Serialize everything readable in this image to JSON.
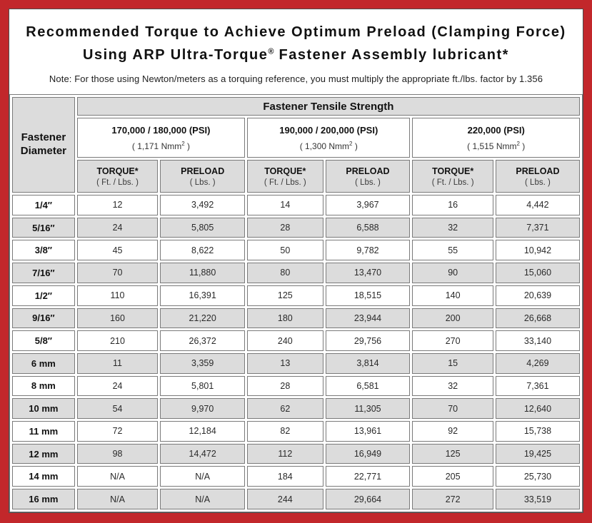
{
  "title": {
    "line1": "Recommended Torque to Achieve Optimum Preload (Clamping Force)",
    "line2_pre": "Using ARP Ultra-Torque",
    "line2_sup": "®",
    "line2_post": " Fastener Assembly lubricant*",
    "note": "Note: For those using Newton/meters as a torquing reference, you must multiply the appropriate ft./lbs. factor by 1.356"
  },
  "table": {
    "group_header": "Fastener Tensile Strength",
    "corner": {
      "line1": "Fastener",
      "line2": "Diameter"
    },
    "strength_groups": [
      {
        "psi": "170,000 / 180,000 (PSI)",
        "nmm_pre": "( 1,171 Nmm",
        "nmm_sup": "2",
        "nmm_post": " )"
      },
      {
        "psi": "190,000 / 200,000 (PSI)",
        "nmm_pre": "( 1,300 Nmm",
        "nmm_sup": "2",
        "nmm_post": " )"
      },
      {
        "psi": "220,000 (PSI)",
        "nmm_pre": "( 1,515 Nmm",
        "nmm_sup": "2",
        "nmm_post": " )"
      }
    ],
    "col_headers": {
      "torque_label": "TORQUE*",
      "torque_unit": "( Ft. / Lbs. )",
      "preload_label": "PRELOAD",
      "preload_unit": "( Lbs. )"
    },
    "rows": [
      {
        "diameter": "1/4″",
        "values": [
          "12",
          "3,492",
          "14",
          "3,967",
          "16",
          "4,442"
        ]
      },
      {
        "diameter": "5/16″",
        "values": [
          "24",
          "5,805",
          "28",
          "6,588",
          "32",
          "7,371"
        ]
      },
      {
        "diameter": "3/8″",
        "values": [
          "45",
          "8,622",
          "50",
          "9,782",
          "55",
          "10,942"
        ]
      },
      {
        "diameter": "7/16″",
        "values": [
          "70",
          "11,880",
          "80",
          "13,470",
          "90",
          "15,060"
        ]
      },
      {
        "diameter": "1/2″",
        "values": [
          "110",
          "16,391",
          "125",
          "18,515",
          "140",
          "20,639"
        ]
      },
      {
        "diameter": "9/16″",
        "values": [
          "160",
          "21,220",
          "180",
          "23,944",
          "200",
          "26,668"
        ]
      },
      {
        "diameter": "5/8″",
        "values": [
          "210",
          "26,372",
          "240",
          "29,756",
          "270",
          "33,140"
        ]
      },
      {
        "diameter": "6 mm",
        "values": [
          "11",
          "3,359",
          "13",
          "3,814",
          "15",
          "4,269"
        ]
      },
      {
        "diameter": "8 mm",
        "values": [
          "24",
          "5,801",
          "28",
          "6,581",
          "32",
          "7,361"
        ]
      },
      {
        "diameter": "10 mm",
        "values": [
          "54",
          "9,970",
          "62",
          "11,305",
          "70",
          "12,640"
        ]
      },
      {
        "diameter": "11 mm",
        "values": [
          "72",
          "12,184",
          "82",
          "13,961",
          "92",
          "15,738"
        ]
      },
      {
        "diameter": "12 mm",
        "values": [
          "98",
          "14,472",
          "112",
          "16,949",
          "125",
          "19,425"
        ]
      },
      {
        "diameter": "14 mm",
        "values": [
          "N/A",
          "N/A",
          "184",
          "22,771",
          "205",
          "25,730"
        ]
      },
      {
        "diameter": "16 mm",
        "values": [
          "N/A",
          "N/A",
          "244",
          "29,664",
          "272",
          "33,519"
        ]
      }
    ]
  },
  "colors": {
    "frame_red": "#C2272B",
    "cell_gray": "#DCDCDC",
    "cell_border_gray": "#7A7A7A"
  }
}
